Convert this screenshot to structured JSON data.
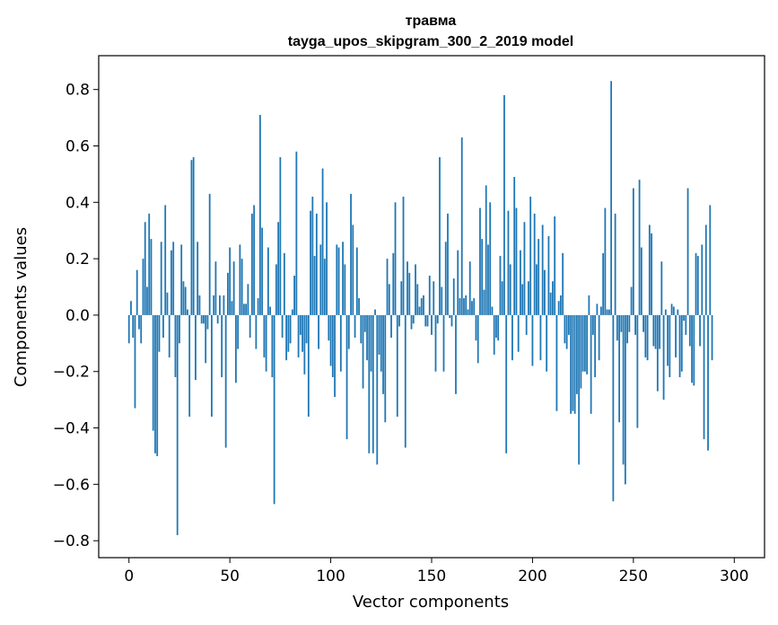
{
  "chart_data": {
    "type": "bar",
    "title": "травма",
    "subtitle": "tayga_upos_skipgram_300_2_2019 model",
    "xlabel": "Vector components",
    "ylabel": "Components values",
    "xlim": [
      -15,
      315
    ],
    "ylim": [
      -0.86,
      0.92
    ],
    "xticks": [
      0,
      50,
      100,
      150,
      200,
      250,
      300
    ],
    "yticks": [
      -0.8,
      -0.6,
      -0.4,
      -0.2,
      0.0,
      0.2,
      0.4,
      0.6,
      0.8
    ],
    "ytick_labels": [
      "−0.8",
      "−0.6",
      "−0.4",
      "−0.2",
      "0.0",
      "0.2",
      "0.4",
      "0.6",
      "0.8"
    ],
    "bar_color": "#1f77b4",
    "values": [
      -0.1,
      0.05,
      -0.08,
      -0.33,
      0.16,
      -0.05,
      -0.1,
      0.2,
      0.33,
      0.1,
      0.36,
      0.27,
      -0.41,
      -0.49,
      -0.5,
      -0.13,
      0.26,
      -0.08,
      0.39,
      0.08,
      -0.15,
      0.23,
      0.26,
      -0.22,
      -0.78,
      -0.1,
      0.25,
      0.12,
      0.1,
      0.02,
      -0.36,
      0.55,
      0.56,
      -0.23,
      0.26,
      0.07,
      -0.03,
      -0.03,
      -0.17,
      -0.05,
      0.43,
      -0.36,
      0.07,
      0.19,
      -0.03,
      0.07,
      -0.22,
      0.07,
      -0.47,
      0.15,
      0.24,
      0.05,
      0.19,
      -0.24,
      -0.12,
      0.25,
      0.2,
      0.04,
      0.04,
      0.11,
      -0.08,
      0.36,
      0.39,
      -0.12,
      0.06,
      0.71,
      0.31,
      -0.15,
      -0.2,
      0.24,
      0.03,
      -0.22,
      -0.67,
      0.18,
      0.33,
      0.56,
      -0.08,
      0.22,
      -0.16,
      -0.13,
      -0.1,
      0.02,
      0.14,
      0.58,
      -0.15,
      -0.07,
      -0.13,
      -0.21,
      -0.1,
      -0.36,
      0.37,
      0.42,
      0.21,
      0.36,
      -0.12,
      0.25,
      0.52,
      0.2,
      0.4,
      -0.09,
      -0.18,
      -0.22,
      -0.29,
      0.25,
      0.24,
      -0.2,
      0.26,
      0.18,
      -0.44,
      -0.12,
      0.43,
      0.32,
      -0.08,
      0.24,
      0.06,
      -0.1,
      -0.26,
      -0.06,
      -0.16,
      -0.49,
      -0.2,
      -0.49,
      0.02,
      -0.53,
      -0.14,
      -0.2,
      -0.28,
      -0.38,
      0.2,
      0.11,
      -0.08,
      0.22,
      0.4,
      -0.36,
      -0.04,
      0.12,
      0.42,
      -0.47,
      0.19,
      0.15,
      -0.05,
      -0.03,
      0.18,
      0.11,
      0.03,
      0.06,
      0.07,
      -0.04,
      -0.04,
      0.14,
      -0.07,
      0.12,
      -0.2,
      -0.03,
      0.56,
      0.1,
      -0.2,
      0.26,
      0.36,
      -0.01,
      -0.04,
      0.13,
      -0.28,
      0.23,
      0.06,
      0.63,
      0.06,
      0.07,
      0.02,
      0.19,
      0.05,
      0.06,
      -0.09,
      -0.17,
      0.38,
      0.27,
      0.09,
      0.46,
      0.25,
      0.4,
      0.03,
      -0.14,
      -0.08,
      -0.09,
      0.21,
      0.12,
      0.78,
      -0.49,
      0.37,
      0.18,
      -0.16,
      0.49,
      0.38,
      -0.13,
      0.23,
      0.11,
      0.33,
      -0.07,
      0.12,
      0.42,
      -0.18,
      0.36,
      0.18,
      0.27,
      -0.16,
      0.32,
      0.16,
      -0.2,
      0.28,
      0.08,
      0.12,
      0.35,
      -0.34,
      0.05,
      0.07,
      0.22,
      -0.1,
      -0.12,
      -0.07,
      -0.35,
      -0.34,
      -0.35,
      -0.28,
      -0.53,
      -0.26,
      -0.2,
      -0.2,
      -0.21,
      0.07,
      -0.35,
      -0.07,
      -0.22,
      0.04,
      -0.16,
      0.03,
      0.22,
      0.38,
      0.02,
      0.02,
      0.83,
      -0.66,
      0.36,
      -0.09,
      -0.38,
      -0.06,
      -0.53,
      -0.6,
      -0.1,
      -0.06,
      0.1,
      0.45,
      -0.07,
      -0.4,
      0.48,
      0.24,
      -0.06,
      -0.15,
      -0.16,
      0.32,
      0.29,
      -0.11,
      -0.12,
      -0.27,
      -0.12,
      0.19,
      -0.3,
      0.02,
      -0.18,
      -0.22,
      0.04,
      0.03,
      -0.15,
      0.02,
      -0.22,
      -0.2,
      -0.02,
      -0.07,
      0.45,
      -0.11,
      -0.24,
      -0.25,
      0.22,
      0.21,
      -0.11,
      0.25,
      -0.44,
      0.32,
      -0.48,
      0.39,
      -0.16
    ]
  }
}
